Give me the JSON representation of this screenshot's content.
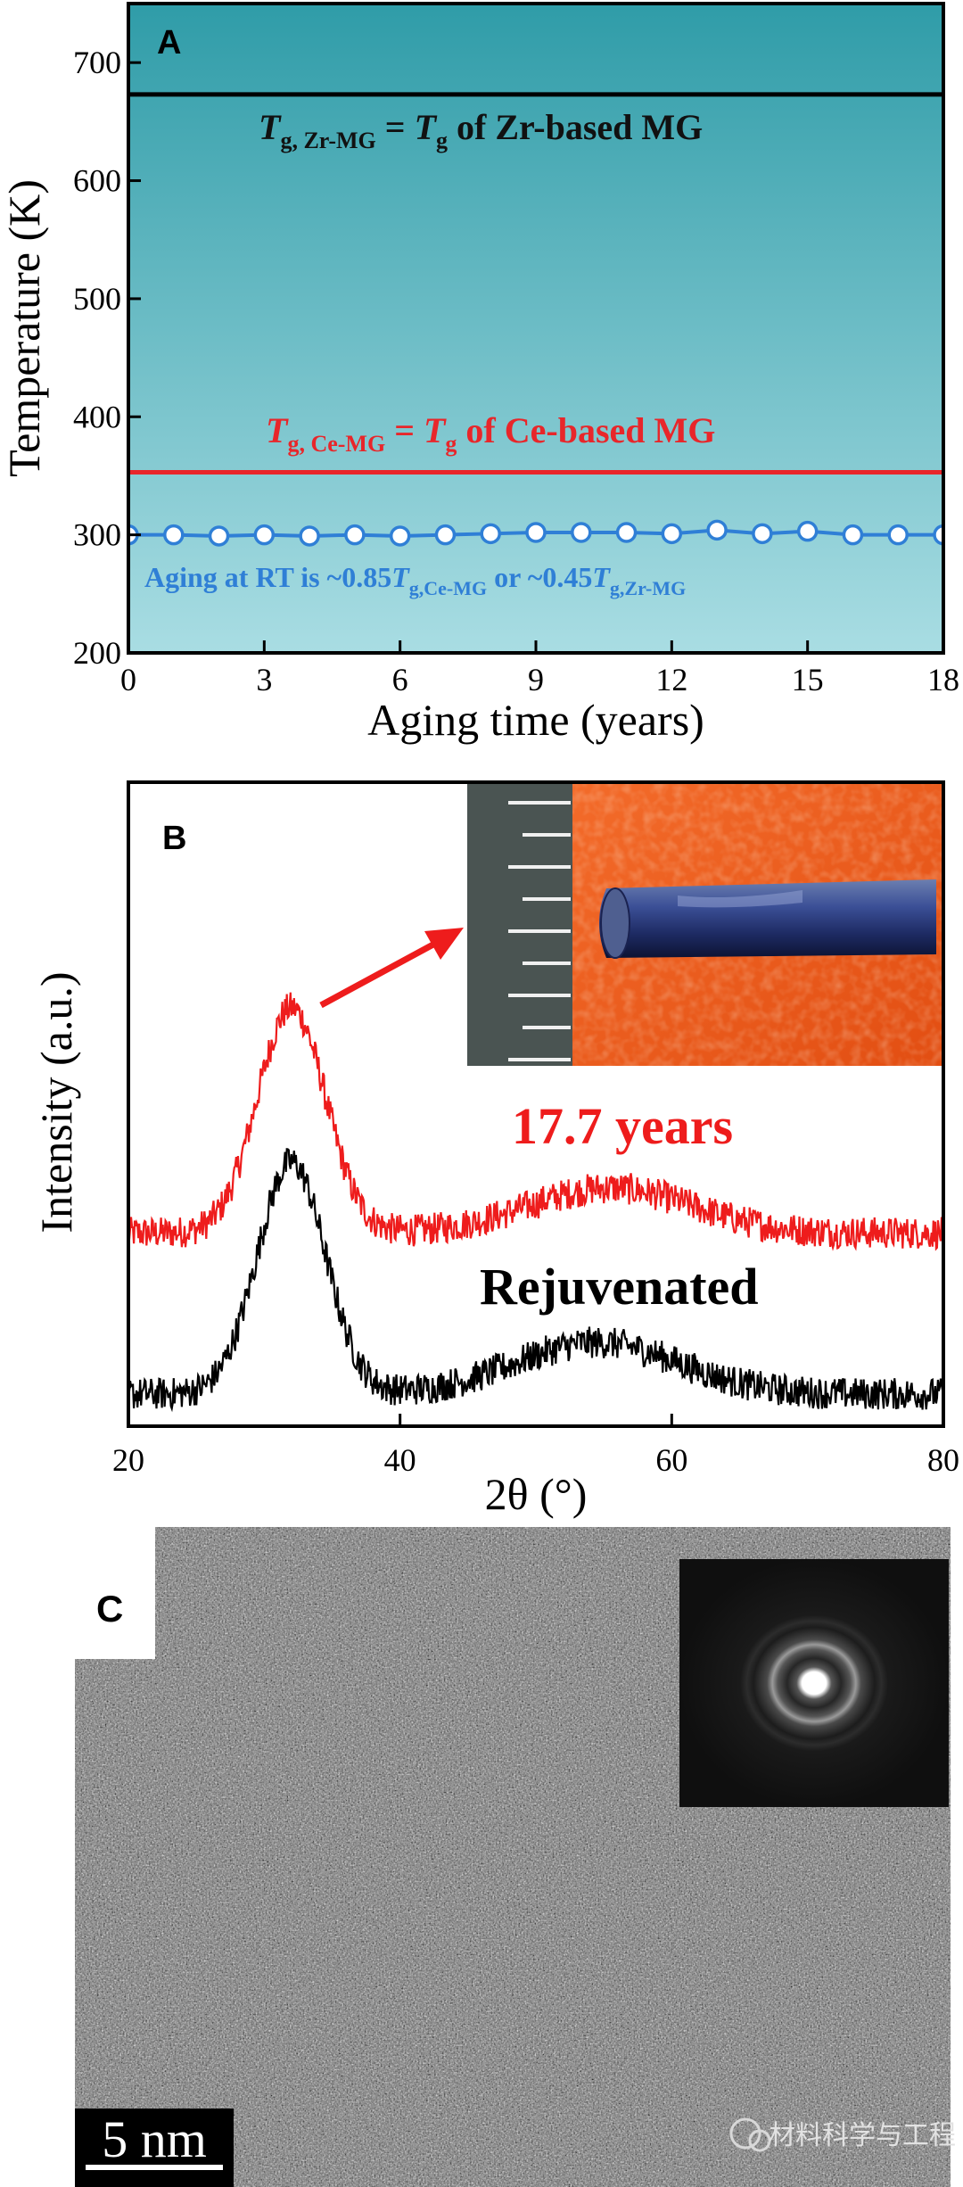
{
  "panels": {
    "a": {
      "letter": "A"
    },
    "b": {
      "letter": "B"
    },
    "c": {
      "letter": "C",
      "scale_bar_label": "5 nm"
    }
  },
  "watermark": "材料科学与工程",
  "chart_data": [
    {
      "type": "line",
      "panel": "A",
      "title": "",
      "xlabel": "Aging time (years)",
      "ylabel": "Temperature (K)",
      "xlim": [
        0,
        18
      ],
      "ylim": [
        200,
        750
      ],
      "xticks": [
        0,
        3,
        6,
        9,
        12,
        15,
        18
      ],
      "yticks": [
        200,
        300,
        400,
        500,
        600,
        700
      ],
      "background_gradient": [
        "#2f9ca8",
        "#a9dde3"
      ],
      "series": [
        {
          "color": "#2f7fd6",
          "marker": "open-circle",
          "x": [
            0,
            1,
            2,
            3,
            4,
            5,
            6,
            7,
            8,
            9,
            10,
            11,
            12,
            13,
            14,
            15,
            16,
            17,
            18
          ],
          "y": [
            300,
            300,
            299,
            300,
            299,
            300,
            299,
            300,
            301,
            302,
            302,
            302,
            301,
            304,
            301,
            303,
            300,
            300,
            300
          ]
        }
      ],
      "reference_lines": [
        {
          "y": 673,
          "color": "#000000"
        },
        {
          "y": 353,
          "color": "#e8262a"
        }
      ],
      "annotations": {
        "zr_line": {
          "lead": "T",
          "sub": "g, Zr-MG",
          "mid": " = ",
          "lead2": "T",
          "sub2": "g",
          "tail": " of Zr-based MG",
          "color": "#111111"
        },
        "ce_line": {
          "lead": "T",
          "sub": "g, Ce-MG",
          "mid": " = ",
          "lead2": "T",
          "sub2": "g",
          "tail": " of Ce-based MG",
          "color": "#e8262a"
        },
        "aging": {
          "text1": "Aging at RT is ~0.85",
          "t1": "T",
          "s1": "g,Ce-MG",
          "text2": " or ~0.45",
          "t2": "T",
          "s2": "g,Zr-MG",
          "color": "#2f7fd6"
        }
      }
    },
    {
      "type": "line",
      "panel": "B",
      "title": "",
      "xlabel": "2θ (°)",
      "ylabel": "Intensity (a.u.)",
      "xlim": [
        20,
        80
      ],
      "ylim": [
        0,
        1
      ],
      "xticks": [
        20,
        40,
        60,
        80
      ],
      "series": [
        {
          "name": "17.7 years",
          "color": "#ee1c1c",
          "baseline": 0.3,
          "peak1": {
            "center": 32,
            "height": 0.35,
            "width": 2.5
          },
          "peak2": {
            "center": 55.5,
            "height": 0.07,
            "width": 6
          }
        },
        {
          "name": "Rejuvenated",
          "color": "#000000",
          "baseline": 0.05,
          "peak1": {
            "center": 32,
            "height": 0.36,
            "width": 2.5
          },
          "peak2": {
            "center": 54.5,
            "height": 0.08,
            "width": 6
          }
        }
      ]
    }
  ]
}
